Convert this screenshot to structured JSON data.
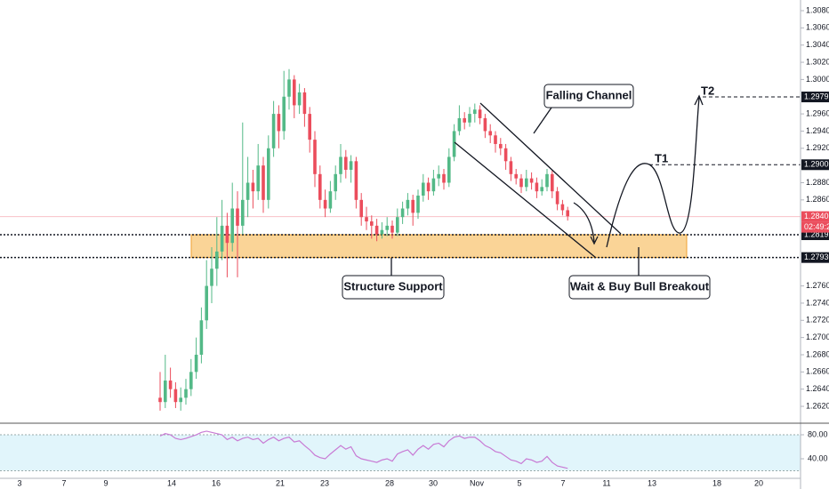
{
  "chart_data": {
    "type": "candlestick",
    "up_color": "#53b987",
    "down_color": "#eb4d5c",
    "ylim": [
      1.26004,
      1.30924
    ],
    "yticks": [
      {
        "value": 1.308,
        "label": "1.30800"
      },
      {
        "value": 1.306,
        "label": "1.30600"
      },
      {
        "value": 1.304,
        "label": "1.30400"
      },
      {
        "value": 1.302,
        "label": "1.30200"
      },
      {
        "value": 1.3,
        "label": "1.30000"
      },
      {
        "value": 1.296,
        "label": "1.29600"
      },
      {
        "value": 1.294,
        "label": "1.29400"
      },
      {
        "value": 1.292,
        "label": "1.29200"
      },
      {
        "value": 1.288,
        "label": "1.28800"
      },
      {
        "value": 1.286,
        "label": "1.28600"
      },
      {
        "value": 1.276,
        "label": "1.27600"
      },
      {
        "value": 1.274,
        "label": "1.27400"
      },
      {
        "value": 1.272,
        "label": "1.27200"
      },
      {
        "value": 1.27,
        "label": "1.27000"
      },
      {
        "value": 1.268,
        "label": "1.26800"
      },
      {
        "value": 1.266,
        "label": "1.26600"
      },
      {
        "value": 1.264,
        "label": "1.26400"
      },
      {
        "value": 1.262,
        "label": "1.26200"
      }
    ],
    "x_axis_labels": [
      "3",
      "7",
      "9",
      "14",
      "16",
      "21",
      "23",
      "28",
      "30",
      "Nov",
      "5",
      "7",
      "11",
      "13",
      "18",
      "20"
    ],
    "price_labels": [
      {
        "value": 1.29797,
        "label": "1.29797",
        "color": "#131722"
      },
      {
        "value": 1.29009,
        "label": "1.29009",
        "color": "#131722"
      },
      {
        "value": 1.28406,
        "label": "1.28406",
        "color": "#eb4d5c"
      },
      {
        "value": 1.28195,
        "label": "1.28195",
        "color": "#131722"
      },
      {
        "value": 1.2793,
        "label": "1.27930",
        "color": "#131722"
      }
    ],
    "countdown": "02:49:23",
    "zone_color": "#f9c97d",
    "annotations": [
      "Falling Channel",
      "Structure Support",
      "Wait & Buy Bull Breakout",
      "T1",
      "T2"
    ],
    "candles": [
      [
        1.263,
        1.266,
        1.2615,
        1.2625
      ],
      [
        1.2625,
        1.268,
        1.2618,
        1.265
      ],
      [
        1.265,
        1.2665,
        1.263,
        1.264
      ],
      [
        1.264,
        1.2648,
        1.2618,
        1.2625
      ],
      [
        1.2625,
        1.2642,
        1.2615,
        1.263
      ],
      [
        1.263,
        1.2652,
        1.2622,
        1.264
      ],
      [
        1.264,
        1.2675,
        1.2632,
        1.266
      ],
      [
        1.266,
        1.27,
        1.2652,
        1.268
      ],
      [
        1.268,
        1.2735,
        1.267,
        1.272
      ],
      [
        1.272,
        1.279,
        1.271,
        1.276
      ],
      [
        1.276,
        1.2805,
        1.274,
        1.278
      ],
      [
        1.278,
        1.284,
        1.276,
        1.28
      ],
      [
        1.28,
        1.286,
        1.279,
        1.283
      ],
      [
        1.283,
        1.2845,
        1.277,
        1.281
      ],
      [
        1.281,
        1.288,
        1.28,
        1.285
      ],
      [
        1.285,
        1.287,
        1.277,
        1.283
      ],
      [
        1.283,
        1.295,
        1.282,
        1.286
      ],
      [
        1.286,
        1.291,
        1.284,
        1.288
      ],
      [
        1.288,
        1.2895,
        1.285,
        1.287
      ],
      [
        1.287,
        1.2925,
        1.286,
        1.29
      ],
      [
        1.29,
        1.291,
        1.2845,
        1.286
      ],
      [
        1.286,
        1.2935,
        1.285,
        1.292
      ],
      [
        1.292,
        1.2975,
        1.291,
        1.296
      ],
      [
        1.296,
        1.297,
        1.292,
        1.294
      ],
      [
        1.294,
        1.301,
        1.293,
        1.298
      ],
      [
        1.298,
        1.3012,
        1.2965,
        1.3
      ],
      [
        1.3,
        1.3005,
        1.2955,
        1.297
      ],
      [
        1.297,
        1.2995,
        1.296,
        1.2985
      ],
      [
        1.2985,
        1.299,
        1.2945,
        1.296
      ],
      [
        1.296,
        1.2968,
        1.2915,
        1.293
      ],
      [
        1.293,
        1.294,
        1.2875,
        1.289
      ],
      [
        1.289,
        1.29,
        1.285,
        1.286
      ],
      [
        1.286,
        1.2872,
        1.284,
        1.285
      ],
      [
        1.285,
        1.2882,
        1.2845,
        1.287
      ],
      [
        1.287,
        1.29,
        1.286,
        1.289
      ],
      [
        1.289,
        1.2925,
        1.288,
        1.291
      ],
      [
        1.291,
        1.2918,
        1.2885,
        1.2895
      ],
      [
        1.2895,
        1.2912,
        1.288,
        1.2905
      ],
      [
        1.2905,
        1.291,
        1.285,
        1.286
      ],
      [
        1.286,
        1.2868,
        1.283,
        1.284
      ],
      [
        1.284,
        1.2852,
        1.2825,
        1.2835
      ],
      [
        1.2835,
        1.2842,
        1.2815,
        1.283
      ],
      [
        1.283,
        1.2838,
        1.2812,
        1.282
      ],
      [
        1.282,
        1.2834,
        1.2815,
        1.2825
      ],
      [
        1.2825,
        1.284,
        1.2818,
        1.283
      ],
      [
        1.283,
        1.2836,
        1.2815,
        1.2822
      ],
      [
        1.2822,
        1.285,
        1.2818,
        1.284
      ],
      [
        1.284,
        1.2858,
        1.2832,
        1.285
      ],
      [
        1.285,
        1.2868,
        1.2842,
        1.286
      ],
      [
        1.286,
        1.2866,
        1.283,
        1.2845
      ],
      [
        1.2845,
        1.2872,
        1.2838,
        1.2865
      ],
      [
        1.2865,
        1.289,
        1.2858,
        1.288
      ],
      [
        1.288,
        1.2886,
        1.286,
        1.287
      ],
      [
        1.287,
        1.2895,
        1.2865,
        1.2885
      ],
      [
        1.2885,
        1.29,
        1.2876,
        1.289
      ],
      [
        1.289,
        1.2896,
        1.2872,
        1.288
      ],
      [
        1.288,
        1.292,
        1.2875,
        1.291
      ],
      [
        1.291,
        1.2948,
        1.2905,
        1.294
      ],
      [
        1.294,
        1.297,
        1.2935,
        1.2955
      ],
      [
        1.2955,
        1.2962,
        1.2942,
        1.295
      ],
      [
        1.295,
        1.2968,
        1.2945,
        1.296
      ],
      [
        1.296,
        1.2972,
        1.295,
        1.2965
      ],
      [
        1.2965,
        1.297,
        1.2948,
        1.2955
      ],
      [
        1.2955,
        1.296,
        1.2932,
        1.294
      ],
      [
        1.294,
        1.2948,
        1.2926,
        1.2935
      ],
      [
        1.2935,
        1.294,
        1.2915,
        1.2925
      ],
      [
        1.2925,
        1.2932,
        1.2912,
        1.292
      ],
      [
        1.292,
        1.2925,
        1.2895,
        1.2905
      ],
      [
        1.2905,
        1.291,
        1.2882,
        1.289
      ],
      [
        1.289,
        1.2896,
        1.2878,
        1.2885
      ],
      [
        1.2885,
        1.289,
        1.2868,
        1.2875
      ],
      [
        1.2875,
        1.2895,
        1.287,
        1.2885
      ],
      [
        1.2885,
        1.2892,
        1.2872,
        1.288
      ],
      [
        1.288,
        1.2886,
        1.2862,
        1.287
      ],
      [
        1.287,
        1.2884,
        1.2865,
        1.2875
      ],
      [
        1.2875,
        1.2896,
        1.287,
        1.289
      ],
      [
        1.289,
        1.2894,
        1.2862,
        1.287
      ],
      [
        1.287,
        1.2875,
        1.2848,
        1.2855
      ],
      [
        1.2855,
        1.286,
        1.2842,
        1.2848
      ],
      [
        1.2848,
        1.2852,
        1.2836,
        1.2841
      ]
    ],
    "rsi": {
      "color": "#c87ad4",
      "band": [
        20,
        80
      ],
      "band_color": "#e1f5fb",
      "ylim": [
        8.9,
        97.8
      ],
      "yticks": [
        {
          "value": 80,
          "label": "80.00"
        },
        {
          "value": 40,
          "label": "40.00"
        }
      ],
      "values": [
        78,
        82,
        80,
        74,
        72,
        74,
        77,
        80,
        84,
        86,
        84,
        82,
        80,
        72,
        76,
        70,
        74,
        76,
        72,
        74,
        66,
        72,
        76,
        70,
        74,
        76,
        68,
        70,
        62,
        55,
        46,
        42,
        40,
        48,
        55,
        62,
        56,
        60,
        45,
        40,
        38,
        36,
        34,
        38,
        40,
        36,
        48,
        52,
        55,
        46,
        56,
        62,
        56,
        64,
        66,
        60,
        70,
        76,
        78,
        74,
        76,
        76,
        70,
        62,
        58,
        52,
        50,
        44,
        38,
        36,
        32,
        40,
        38,
        34,
        36,
        44,
        34,
        28,
        26,
        24
      ]
    }
  }
}
